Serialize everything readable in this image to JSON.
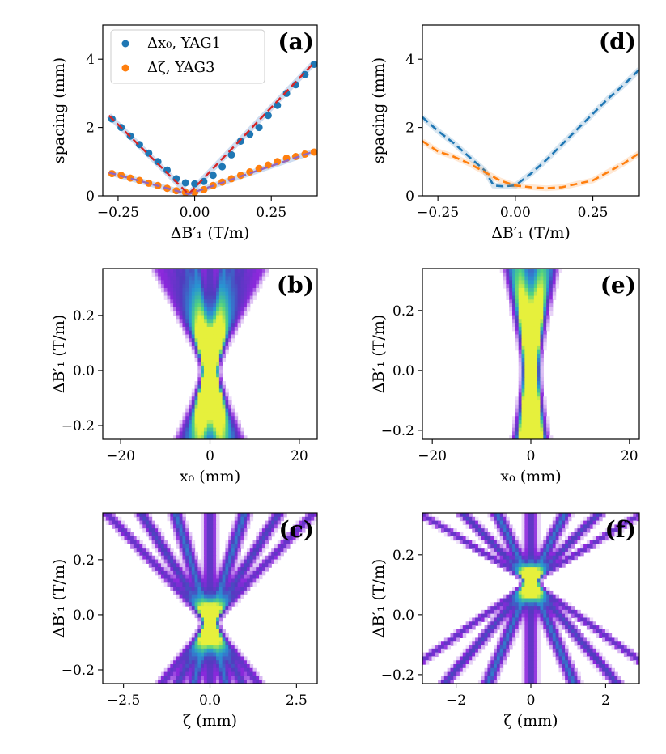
{
  "chart_data": [
    {
      "id": "a",
      "type": "scatter",
      "panel_label": "(a)",
      "xlabel": "ΔB′₁ (T/m)",
      "ylabel": "spacing (mm)",
      "xlim": [
        -0.3,
        0.4
      ],
      "ylim": [
        0,
        5
      ],
      "xticks": [
        -0.25,
        0.0,
        0.25
      ],
      "xtick_labels": [
        "−0.25",
        "0.00",
        "0.25"
      ],
      "yticks": [
        0,
        2,
        4
      ],
      "ytick_labels": [
        "0",
        "2",
        "4"
      ],
      "legend_position": "top-left",
      "series": [
        {
          "name": "Δx₀, YAG1",
          "color": "#1f77b4",
          "x": [
            -0.27,
            -0.24,
            -0.21,
            -0.18,
            -0.15,
            -0.12,
            -0.09,
            -0.06,
            -0.03,
            0.0,
            0.03,
            0.06,
            0.09,
            0.12,
            0.15,
            0.18,
            0.21,
            0.24,
            0.27,
            0.3,
            0.33,
            0.36,
            0.39
          ],
          "y": [
            2.25,
            2.0,
            1.75,
            1.5,
            1.25,
            1.0,
            0.75,
            0.5,
            0.38,
            0.35,
            0.42,
            0.6,
            0.85,
            1.2,
            1.6,
            1.8,
            2.0,
            2.35,
            2.65,
            3.0,
            3.25,
            3.55,
            3.85
          ]
        },
        {
          "name": "Δζ, YAG3",
          "color": "#ff7f0e",
          "x": [
            -0.27,
            -0.24,
            -0.21,
            -0.18,
            -0.15,
            -0.12,
            -0.09,
            -0.06,
            -0.03,
            0.0,
            0.03,
            0.06,
            0.09,
            0.12,
            0.15,
            0.18,
            0.21,
            0.24,
            0.27,
            0.3,
            0.33,
            0.36,
            0.39
          ],
          "y": [
            0.65,
            0.6,
            0.52,
            0.45,
            0.37,
            0.3,
            0.22,
            0.15,
            0.1,
            0.1,
            0.18,
            0.3,
            0.4,
            0.5,
            0.6,
            0.7,
            0.8,
            0.9,
            1.0,
            1.1,
            1.15,
            1.22,
            1.28
          ]
        }
      ],
      "fits": [
        {
          "color": "#d62728",
          "x": [
            -0.28,
            -0.02,
            0.39
          ],
          "y": [
            2.35,
            0.05,
            3.9
          ]
        },
        {
          "color": "#9467bd",
          "x": [
            -0.28,
            -0.02,
            0.39
          ],
          "y": [
            0.68,
            0.05,
            1.3
          ]
        }
      ]
    },
    {
      "id": "d",
      "type": "line",
      "panel_label": "(d)",
      "xlabel": "ΔB′₁ (T/m)",
      "ylabel": "spacing (mm)",
      "xlim": [
        -0.3,
        0.4
      ],
      "ylim": [
        0,
        5
      ],
      "xticks": [
        -0.25,
        0.0,
        0.25
      ],
      "xtick_labels": [
        "−0.25",
        "0.00",
        "0.25"
      ],
      "yticks": [
        0,
        2,
        4
      ],
      "ytick_labels": [
        "0",
        "2",
        "4"
      ],
      "series": [
        {
          "name": "blue",
          "color": "#1f77b4",
          "x": [
            -0.3,
            -0.25,
            -0.2,
            -0.15,
            -0.1,
            -0.07,
            -0.04,
            0.0,
            0.05,
            0.1,
            0.15,
            0.2,
            0.25,
            0.3,
            0.35,
            0.4
          ],
          "y": [
            2.3,
            1.9,
            1.55,
            1.15,
            0.75,
            0.3,
            0.28,
            0.3,
            0.65,
            1.05,
            1.5,
            1.95,
            2.4,
            2.85,
            3.25,
            3.7
          ]
        },
        {
          "name": "orange",
          "color": "#ff7f0e",
          "x": [
            -0.3,
            -0.25,
            -0.2,
            -0.15,
            -0.1,
            -0.05,
            0.0,
            0.05,
            0.1,
            0.15,
            0.2,
            0.25,
            0.3,
            0.35,
            0.4
          ],
          "y": [
            1.6,
            1.3,
            1.15,
            0.95,
            0.7,
            0.45,
            0.3,
            0.25,
            0.22,
            0.25,
            0.35,
            0.45,
            0.7,
            0.95,
            1.25
          ]
        }
      ]
    },
    {
      "id": "b",
      "type": "heatmap",
      "panel_label": "(b)",
      "xlabel": "x₀ (mm)",
      "ylabel": "ΔB′₁ (T/m)",
      "xlim": [
        -24,
        24
      ],
      "ylim": [
        -0.25,
        0.37
      ],
      "xticks": [
        -20,
        0,
        20
      ],
      "xtick_labels": [
        "−20",
        "0",
        "20"
      ],
      "yticks": [
        -0.2,
        0.0,
        0.2
      ],
      "ytick_labels": [
        "−0.2",
        "0.0",
        "0.2"
      ],
      "beam_angles_mm_per_Tm": [
        8,
        14,
        20,
        26,
        32
      ],
      "waist": 0.0
    },
    {
      "id": "e",
      "type": "heatmap",
      "panel_label": "(e)",
      "xlabel": "x₀ (mm)",
      "ylabel": "ΔB′₁ (T/m)",
      "xlim": [
        -22,
        22
      ],
      "ylim": [
        -0.23,
        0.34
      ],
      "xticks": [
        -20,
        0,
        20
      ],
      "xtick_labels": [
        "−20",
        "0",
        "20"
      ],
      "yticks": [
        -0.2,
        0.0,
        0.2
      ],
      "ytick_labels": [
        "−0.2",
        "0.0",
        "0.2"
      ],
      "beam_angles_mm_per_Tm": [
        5,
        9,
        13
      ],
      "waist": 0.0
    },
    {
      "id": "c",
      "type": "heatmap",
      "panel_label": "(c)",
      "xlabel": "ζ (mm)",
      "ylabel": "ΔB′₁ (T/m)",
      "xlim": [
        -3.1,
        3.1
      ],
      "ylim": [
        -0.25,
        0.37
      ],
      "xticks": [
        -2.5,
        0.0,
        2.5
      ],
      "xtick_labels": [
        "−2.5",
        "0.0",
        "2.5"
      ],
      "yticks": [
        -0.2,
        0.0,
        0.2
      ],
      "ytick_labels": [
        "−0.2",
        "0.0",
        "0.2"
      ],
      "beam_angles_mm_per_Tm": [
        2.5,
        5.0,
        7.5
      ],
      "waist": -0.03
    },
    {
      "id": "f",
      "type": "heatmap",
      "panel_label": "(f)",
      "xlabel": "ζ (mm)",
      "ylabel": "ΔB′₁ (T/m)",
      "xlim": [
        -2.9,
        2.9
      ],
      "ylim": [
        -0.23,
        0.34
      ],
      "xticks": [
        -2,
        0,
        2
      ],
      "xtick_labels": [
        "−2",
        "0",
        "2"
      ],
      "yticks": [
        -0.2,
        0.0,
        0.2
      ],
      "ytick_labels": [
        "−0.2",
        "0.0",
        "0.2"
      ],
      "beam_angles_mm_per_Tm": [
        4,
        8,
        13
      ],
      "waist": 0.11
    }
  ]
}
